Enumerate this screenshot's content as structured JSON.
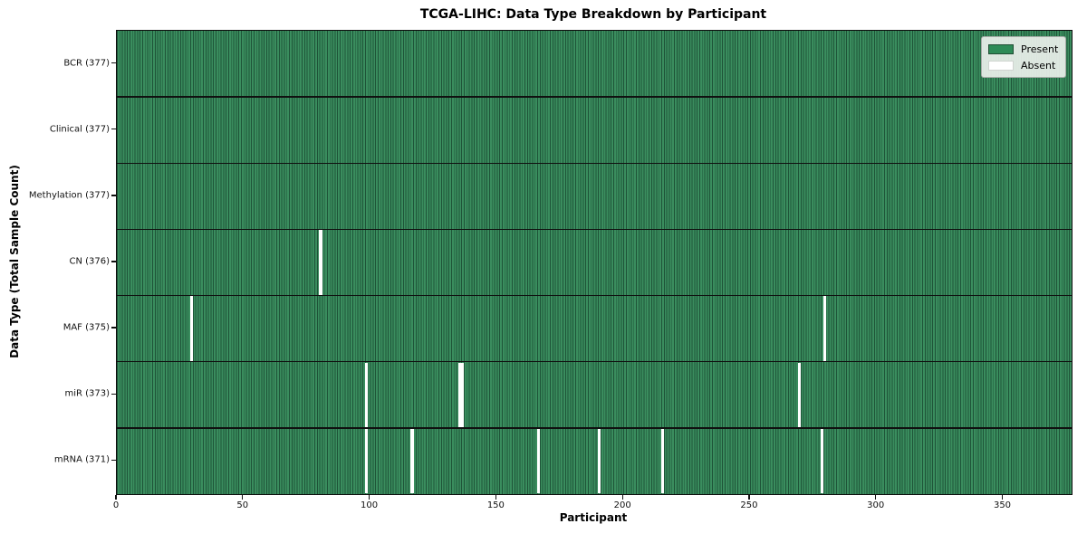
{
  "chart_data": {
    "type": "heatmap",
    "title": "TCGA-LIHC: Data Type Breakdown by Participant",
    "xlabel": "Participant",
    "ylabel": "Data Type (Total Sample Count)",
    "x_ticks": [
      0,
      50,
      100,
      150,
      200,
      250,
      300,
      350
    ],
    "x_range": [
      0,
      377
    ],
    "n_participants": 377,
    "grid": false,
    "legend_position": "upper right",
    "colors": {
      "present": "#2e8b57",
      "present_fill": "#3a8d5e",
      "absent": "#ffffff",
      "cell_edge": "#1d4731",
      "row_separator": "#101010"
    },
    "legend": [
      {
        "label": "Present",
        "color": "#2e8b57"
      },
      {
        "label": "Absent",
        "color": "#ffffff"
      }
    ],
    "rows": [
      {
        "label": "BCR (377)",
        "name": "BCR",
        "total": 377,
        "absent_participants": []
      },
      {
        "label": "Clinical (377)",
        "name": "Clinical",
        "total": 377,
        "absent_participants": []
      },
      {
        "label": "Methylation (377)",
        "name": "Methylation",
        "total": 377,
        "absent_participants": []
      },
      {
        "label": "CN (376)",
        "name": "CN",
        "total": 376,
        "absent_participants": [
          80
        ]
      },
      {
        "label": "MAF (375)",
        "name": "MAF",
        "total": 375,
        "absent_participants": [
          29,
          279
        ]
      },
      {
        "label": "miR (373)",
        "name": "miR",
        "total": 373,
        "absent_participants": [
          98,
          135,
          136,
          269
        ]
      },
      {
        "label": "mRNA (371)",
        "name": "mRNA",
        "total": 371,
        "absent_participants": [
          98,
          116,
          166,
          190,
          215,
          278
        ]
      }
    ]
  }
}
